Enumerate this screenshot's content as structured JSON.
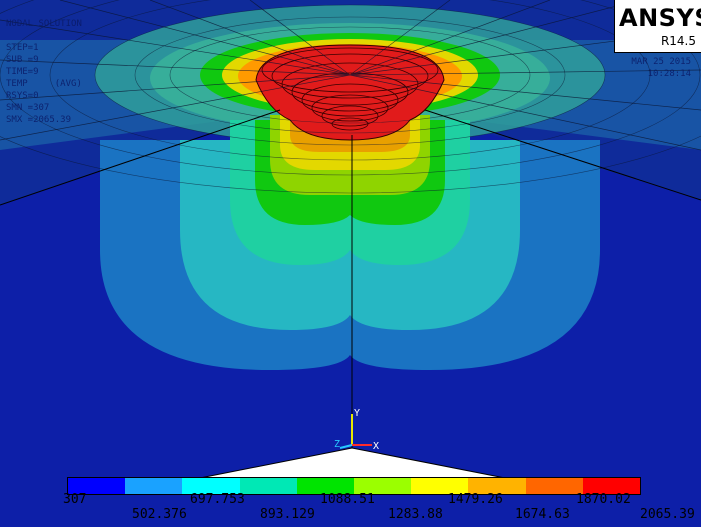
{
  "logo": {
    "name": "ANSYS",
    "release": "R14.5"
  },
  "info_left": "NODAL SOLUTION\n\nSTEP=1\nSUB =9\nTIME=9\nTEMP     (AVG)\nRSYS=0\nSMN =307\nSMX =2065.39",
  "info_right": "MAR 25 2015\n10:28:14",
  "axis": {
    "x_label": "X",
    "y_label": "Y",
    "z_label": "Z"
  },
  "legend": {
    "colors": [
      "#0000ff",
      "#1aa2ff",
      "#00ffff",
      "#00e8b5",
      "#00e400",
      "#9bff00",
      "#ffff00",
      "#ffb300",
      "#ff6600",
      "#ff0000"
    ],
    "labels_top": [
      "307",
      "697.753",
      "1088.51",
      "1479.26",
      "1870.02"
    ],
    "labels_bottom": [
      "502.376",
      "893.129",
      "1283.88",
      "1674.63",
      "2065.39"
    ]
  }
}
